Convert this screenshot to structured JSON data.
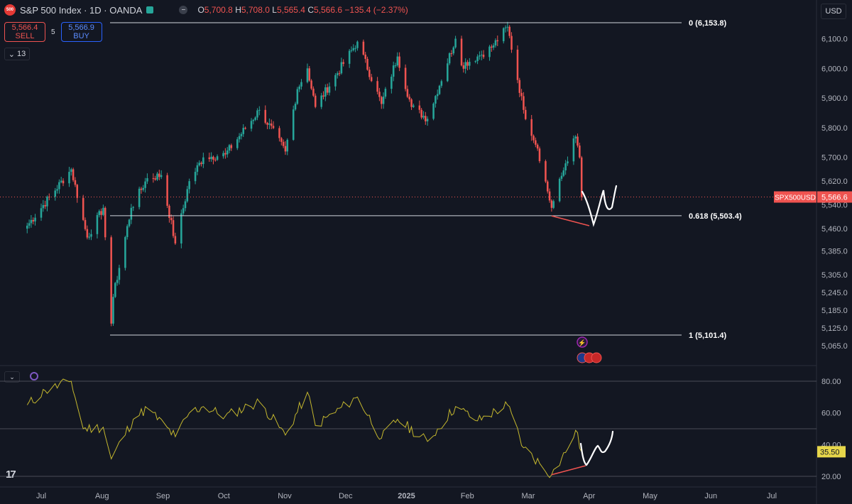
{
  "header": {
    "symbol_badge": "500",
    "title": "S&P 500 Index · 1D · OANDA",
    "ohlc": [
      {
        "k": "O",
        "v": "5,700.8"
      },
      {
        "k": "H",
        "v": "5,708.0"
      },
      {
        "k": "L",
        "v": "5,565.4"
      },
      {
        "k": "C",
        "v": "5,566.6"
      }
    ],
    "change": "−135.4 (−2.37%)",
    "minus_icon": "minus-icon",
    "status_icon": "green-square-icon"
  },
  "trade": {
    "sell_price": "5,566.4",
    "sell_label": "SELL",
    "spread": "5",
    "buy_price": "5,566.9",
    "buy_label": "BUY"
  },
  "indicator_count": "13",
  "currency": "USD",
  "colors": {
    "up": "#26a69a",
    "down": "#ef5350",
    "rsi": "#c4b72e",
    "bg": "#131722",
    "drawing": "#ffffff"
  },
  "chart_data": [
    {
      "type": "candlestick",
      "title": "",
      "y_ticks": [
        "6,100.0",
        "6,000.0",
        "5,900.0",
        "5,800.0",
        "5,700.0",
        "5,620.0",
        "5,540.0",
        "5,460.0",
        "5,385.0",
        "5,305.0",
        "5,245.0",
        "5,185.0",
        "5,125.0",
        "5,065.0"
      ],
      "x_ticks": [
        "Jul",
        "Aug",
        "Sep",
        "Oct",
        "Nov",
        "Dec",
        "2025",
        "Feb",
        "Mar",
        "Apr",
        "May",
        "Jun",
        "Jul"
      ],
      "last_price": 5566.6,
      "last_price_label": "5,566.6",
      "symbol_label": "SPX500USD",
      "fib_levels": [
        {
          "ratio": 0,
          "label": "0 (6,153.8)",
          "price": 6153.8
        },
        {
          "ratio": 0.618,
          "label": "0.618 (5,503.4)",
          "price": 5503.4
        },
        {
          "ratio": 1,
          "label": "1 (5,101.4)",
          "price": 5101.4
        }
      ],
      "anchor_points": [
        {
          "date": "2024-06-24",
          "price": 5470
        },
        {
          "date": "2024-07-16",
          "price": 5660
        },
        {
          "date": "2024-07-24",
          "price": 5430
        },
        {
          "date": "2024-08-01",
          "price": 5530
        },
        {
          "date": "2024-08-05",
          "price": 5140
        },
        {
          "date": "2024-08-06",
          "price": 5230
        },
        {
          "date": "2024-08-15",
          "price": 5530
        },
        {
          "date": "2024-08-23",
          "price": 5630
        },
        {
          "date": "2024-08-30",
          "price": 5640
        },
        {
          "date": "2024-09-06",
          "price": 5410
        },
        {
          "date": "2024-09-13",
          "price": 5620
        },
        {
          "date": "2024-09-20",
          "price": 5700
        },
        {
          "date": "2024-10-01",
          "price": 5710
        },
        {
          "date": "2024-10-18",
          "price": 5860
        },
        {
          "date": "2024-10-31",
          "price": 5720
        },
        {
          "date": "2024-11-06",
          "price": 5930
        },
        {
          "date": "2024-11-11",
          "price": 6000
        },
        {
          "date": "2024-11-15",
          "price": 5870
        },
        {
          "date": "2024-12-06",
          "price": 6090
        },
        {
          "date": "2024-12-18",
          "price": 5880
        },
        {
          "date": "2024-12-26",
          "price": 6040
        },
        {
          "date": "2025-01-02",
          "price": 5870
        },
        {
          "date": "2025-01-10",
          "price": 5830
        },
        {
          "date": "2025-01-24",
          "price": 6100
        },
        {
          "date": "2025-01-27",
          "price": 6010
        },
        {
          "date": "2025-02-04",
          "price": 6040
        },
        {
          "date": "2025-02-11",
          "price": 6070
        },
        {
          "date": "2025-02-19",
          "price": 6140
        },
        {
          "date": "2025-02-27",
          "price": 5860
        },
        {
          "date": "2025-03-06",
          "price": 5730
        },
        {
          "date": "2025-03-13",
          "price": 5530
        },
        {
          "date": "2025-03-20",
          "price": 5680
        },
        {
          "date": "2025-03-25",
          "price": 5770
        },
        {
          "date": "2025-03-27",
          "price": 5700
        },
        {
          "date": "2025-03-28",
          "price": 5566.6
        }
      ]
    },
    {
      "type": "line",
      "title": "",
      "series_name": "",
      "y_ticks": [
        "80.00",
        "60.00",
        "40.00",
        "20.00"
      ],
      "last_value": 35.5,
      "last_value_label": "35.50",
      "levels": [
        80,
        50,
        20
      ],
      "points": [
        {
          "date": "2024-06-24",
          "value": 65
        },
        {
          "date": "2024-07-03",
          "value": 74
        },
        {
          "date": "2024-07-16",
          "value": 80
        },
        {
          "date": "2024-07-22",
          "value": 50
        },
        {
          "date": "2024-08-01",
          "value": 51
        },
        {
          "date": "2024-08-05",
          "value": 31
        },
        {
          "date": "2024-08-16",
          "value": 56
        },
        {
          "date": "2024-08-23",
          "value": 63
        },
        {
          "date": "2024-09-06",
          "value": 45
        },
        {
          "date": "2024-09-13",
          "value": 60
        },
        {
          "date": "2024-09-20",
          "value": 64
        },
        {
          "date": "2024-10-01",
          "value": 58
        },
        {
          "date": "2024-10-18",
          "value": 67
        },
        {
          "date": "2024-10-31",
          "value": 46
        },
        {
          "date": "2024-11-11",
          "value": 73
        },
        {
          "date": "2024-11-15",
          "value": 52
        },
        {
          "date": "2024-12-06",
          "value": 70
        },
        {
          "date": "2024-12-18",
          "value": 44
        },
        {
          "date": "2024-12-26",
          "value": 56
        },
        {
          "date": "2025-01-10",
          "value": 42
        },
        {
          "date": "2025-01-24",
          "value": 64
        },
        {
          "date": "2025-02-04",
          "value": 55
        },
        {
          "date": "2025-02-19",
          "value": 65
        },
        {
          "date": "2025-02-27",
          "value": 38
        },
        {
          "date": "2025-03-13",
          "value": 21
        },
        {
          "date": "2025-03-20",
          "value": 35
        },
        {
          "date": "2025-03-25",
          "value": 49
        },
        {
          "date": "2025-03-28",
          "value": 35.5
        }
      ]
    }
  ]
}
